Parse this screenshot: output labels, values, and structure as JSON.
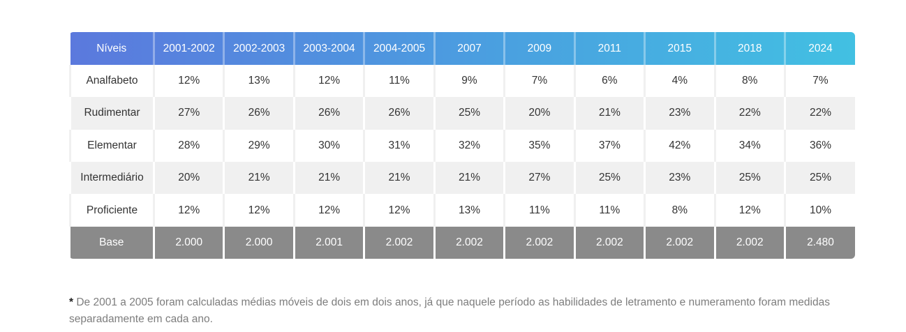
{
  "table": {
    "header": [
      "Níveis",
      "2001-2002",
      "2002-2003",
      "2003-2004",
      "2004-2005",
      "2007",
      "2009",
      "2011",
      "2015",
      "2018",
      "2024"
    ],
    "rows": [
      {
        "label": "Analfabeto",
        "values": [
          "12%",
          "13%",
          "12%",
          "11%",
          "9%",
          "7%",
          "6%",
          "4%",
          "8%",
          "7%"
        ]
      },
      {
        "label": "Rudimentar",
        "values": [
          "27%",
          "26%",
          "26%",
          "26%",
          "25%",
          "20%",
          "21%",
          "23%",
          "22%",
          "22%"
        ]
      },
      {
        "label": "Elementar",
        "values": [
          "28%",
          "29%",
          "30%",
          "31%",
          "32%",
          "35%",
          "37%",
          "42%",
          "34%",
          "36%"
        ]
      },
      {
        "label": "Intermediário",
        "values": [
          "20%",
          "21%",
          "21%",
          "21%",
          "21%",
          "27%",
          "25%",
          "23%",
          "25%",
          "25%"
        ]
      },
      {
        "label": "Proficiente",
        "values": [
          "12%",
          "12%",
          "12%",
          "12%",
          "13%",
          "11%",
          "11%",
          "8%",
          "12%",
          "10%"
        ]
      }
    ],
    "footer": {
      "label": "Base",
      "values": [
        "2.000",
        "2.000",
        "2.001",
        "2.002",
        "2.002",
        "2.002",
        "2.002",
        "2.002",
        "2.002",
        "2.480"
      ]
    }
  },
  "footnote": {
    "marker": "*",
    "text": " De 2001 a 2005 foram calculadas médias móveis de dois em dois anos, já que naquele período as habilidades de letramento e numeramento foram medidas separadamente em cada ano."
  },
  "colors": {
    "header_gradient_start": "#5b79dd",
    "header_gradient_end": "#42c0e2",
    "footer_row": "#8a8a8a",
    "stripe": "#f0f0f0"
  }
}
